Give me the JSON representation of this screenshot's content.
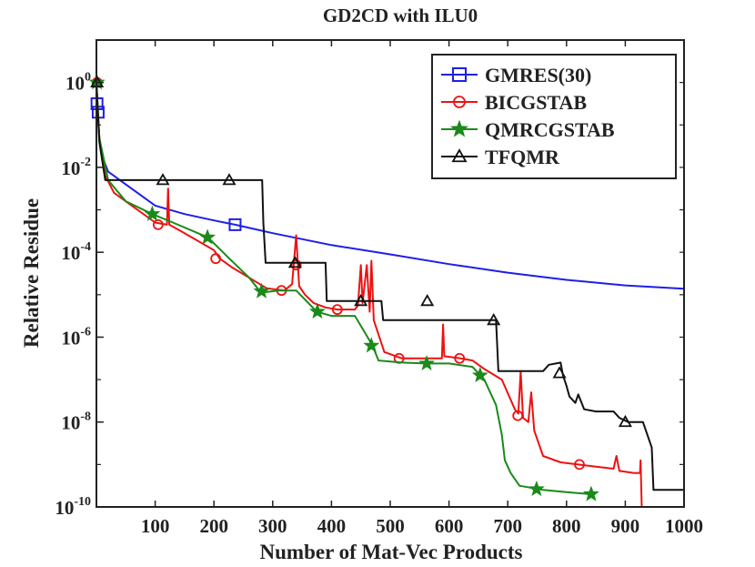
{
  "chart_data": {
    "type": "line",
    "title": "GD2CD with ILU0",
    "xlabel": "Number of Mat-Vec Products",
    "ylabel": "Relative Residue",
    "xlim": [
      0,
      1000
    ],
    "ylim_log10": [
      -10,
      1
    ],
    "yscale": "log",
    "xticks": [
      100,
      200,
      300,
      400,
      500,
      600,
      700,
      800,
      900,
      1000
    ],
    "xtick_labels": [
      "100",
      "200",
      "300",
      "400",
      "500",
      "600",
      "700",
      "800",
      "900",
      "1000"
    ],
    "yticks_log10": [
      0,
      -2,
      -4,
      -6,
      -8,
      -10
    ],
    "ytick_labels": [
      {
        "base": "10",
        "exp": "0"
      },
      {
        "base": "10",
        "exp": "-2"
      },
      {
        "base": "10",
        "exp": "-4"
      },
      {
        "base": "10",
        "exp": "-6"
      },
      {
        "base": "10",
        "exp": "-8"
      },
      {
        "base": "10",
        "exp": "-10"
      }
    ],
    "legend_position": "top-right",
    "series": [
      {
        "name": "GMRES(30)",
        "color": "#1f1fe6",
        "marker": "square",
        "points": [
          [
            0,
            0.0
          ],
          [
            1,
            -0.5
          ],
          [
            2,
            -0.7
          ],
          [
            5,
            -1.3
          ],
          [
            10,
            -1.75
          ],
          [
            20,
            -2.1
          ],
          [
            40,
            -2.3
          ],
          [
            70,
            -2.6
          ],
          [
            100,
            -2.9
          ],
          [
            150,
            -3.1
          ],
          [
            200,
            -3.25
          ],
          [
            236,
            -3.35
          ],
          [
            300,
            -3.55
          ],
          [
            400,
            -3.83
          ],
          [
            500,
            -4.05
          ],
          [
            600,
            -4.28
          ],
          [
            700,
            -4.48
          ],
          [
            800,
            -4.65
          ],
          [
            900,
            -4.78
          ],
          [
            1000,
            -4.86
          ]
        ],
        "markers": [
          [
            1,
            -0.5
          ],
          [
            3,
            -0.7
          ],
          [
            236,
            -3.35
          ]
        ]
      },
      {
        "name": "BICGSTAB",
        "color": "#ee1111",
        "marker": "circle",
        "points": [
          [
            0,
            0.0
          ],
          [
            5,
            -1.3
          ],
          [
            15,
            -2.2
          ],
          [
            30,
            -2.6
          ],
          [
            60,
            -2.9
          ],
          [
            100,
            -3.3
          ],
          [
            120,
            -3.35
          ],
          [
            122,
            -2.5
          ],
          [
            124,
            -3.35
          ],
          [
            150,
            -3.55
          ],
          [
            200,
            -3.95
          ],
          [
            210,
            -4.15
          ],
          [
            230,
            -4.35
          ],
          [
            260,
            -4.6
          ],
          [
            290,
            -4.85
          ],
          [
            320,
            -4.9
          ],
          [
            333,
            -4.75
          ],
          [
            340,
            -3.6
          ],
          [
            345,
            -4.8
          ],
          [
            355,
            -5.0
          ],
          [
            370,
            -5.2
          ],
          [
            390,
            -5.3
          ],
          [
            410,
            -5.35
          ],
          [
            440,
            -5.35
          ],
          [
            445,
            -5.25
          ],
          [
            450,
            -4.3
          ],
          [
            453,
            -5.2
          ],
          [
            460,
            -4.3
          ],
          [
            465,
            -5.4
          ],
          [
            468,
            -4.2
          ],
          [
            472,
            -5.6
          ],
          [
            490,
            -6.35
          ],
          [
            520,
            -6.5
          ],
          [
            560,
            -6.5
          ],
          [
            588,
            -6.5
          ],
          [
            590,
            -5.7
          ],
          [
            592,
            -6.45
          ],
          [
            620,
            -6.5
          ],
          [
            640,
            -6.55
          ],
          [
            660,
            -6.75
          ],
          [
            690,
            -7.0
          ],
          [
            712,
            -7.7
          ],
          [
            718,
            -7.8
          ],
          [
            722,
            -6.8
          ],
          [
            726,
            -7.9
          ],
          [
            735,
            -8.0
          ],
          [
            740,
            -7.3
          ],
          [
            745,
            -8.2
          ],
          [
            760,
            -8.8
          ],
          [
            790,
            -8.95
          ],
          [
            820,
            -9.0
          ],
          [
            850,
            -9.05
          ],
          [
            880,
            -9.1
          ],
          [
            885,
            -8.8
          ],
          [
            890,
            -9.15
          ],
          [
            915,
            -9.2
          ],
          [
            925,
            -9.2
          ],
          [
            926,
            -8.9
          ],
          [
            928,
            -10.0
          ]
        ],
        "markers": [
          [
            1,
            0.0
          ],
          [
            105,
            -3.35
          ],
          [
            203,
            -4.15
          ],
          [
            315,
            -4.9
          ],
          [
            340,
            -4.3
          ],
          [
            410,
            -5.35
          ],
          [
            515,
            -6.5
          ],
          [
            618,
            -6.5
          ],
          [
            717,
            -7.85
          ],
          [
            822,
            -9.0
          ]
        ]
      },
      {
        "name": "QMRCGSTAB",
        "color": "#1a8a1a",
        "marker": "star",
        "points": [
          [
            0,
            0.0
          ],
          [
            5,
            -1.3
          ],
          [
            20,
            -2.3
          ],
          [
            50,
            -2.8
          ],
          [
            95,
            -3.1
          ],
          [
            130,
            -3.3
          ],
          [
            190,
            -3.65
          ],
          [
            230,
            -4.2
          ],
          [
            260,
            -4.6
          ],
          [
            280,
            -4.95
          ],
          [
            310,
            -4.9
          ],
          [
            340,
            -4.9
          ],
          [
            375,
            -5.4
          ],
          [
            400,
            -5.5
          ],
          [
            440,
            -5.5
          ],
          [
            470,
            -6.2
          ],
          [
            480,
            -6.55
          ],
          [
            520,
            -6.6
          ],
          [
            560,
            -6.62
          ],
          [
            600,
            -6.62
          ],
          [
            640,
            -6.7
          ],
          [
            660,
            -7.0
          ],
          [
            680,
            -7.6
          ],
          [
            690,
            -8.3
          ],
          [
            695,
            -8.9
          ],
          [
            705,
            -9.2
          ],
          [
            720,
            -9.5
          ],
          [
            760,
            -9.6
          ],
          [
            800,
            -9.65
          ],
          [
            842,
            -9.7
          ]
        ],
        "markers": [
          [
            1,
            0.0
          ],
          [
            95,
            -3.1
          ],
          [
            189,
            -3.65
          ],
          [
            281,
            -4.92
          ],
          [
            376,
            -5.4
          ],
          [
            468,
            -6.2
          ],
          [
            562,
            -6.62
          ],
          [
            653,
            -6.9
          ],
          [
            749,
            -9.58
          ],
          [
            842,
            -9.7
          ]
        ]
      },
      {
        "name": "TFQMR",
        "color": "#111111",
        "marker": "triangle",
        "points": [
          [
            0,
            0.0
          ],
          [
            5,
            -1.4
          ],
          [
            15,
            -2.3
          ],
          [
            282,
            -2.3
          ],
          [
            284,
            -3.3
          ],
          [
            288,
            -4.25
          ],
          [
            390,
            -4.25
          ],
          [
            392,
            -5.15
          ],
          [
            485,
            -5.15
          ],
          [
            488,
            -5.6
          ],
          [
            680,
            -5.6
          ],
          [
            684,
            -6.8
          ],
          [
            760,
            -6.8
          ],
          [
            770,
            -6.65
          ],
          [
            790,
            -6.6
          ],
          [
            794,
            -6.9
          ],
          [
            800,
            -7.15
          ],
          [
            805,
            -7.4
          ],
          [
            815,
            -7.55
          ],
          [
            820,
            -7.35
          ],
          [
            830,
            -7.7
          ],
          [
            850,
            -7.75
          ],
          [
            880,
            -7.75
          ],
          [
            890,
            -7.9
          ],
          [
            905,
            -8.0
          ],
          [
            930,
            -8.0
          ],
          [
            945,
            -8.6
          ],
          [
            948,
            -9.6
          ],
          [
            1000,
            -9.6
          ]
        ],
        "markers": [
          [
            1,
            0.0
          ],
          [
            113,
            -2.3
          ],
          [
            226,
            -2.3
          ],
          [
            338,
            -4.25
          ],
          [
            450,
            -5.15
          ],
          [
            563,
            -5.15
          ],
          [
            676,
            -5.6
          ],
          [
            788,
            -6.85
          ],
          [
            900,
            -8.0
          ]
        ]
      }
    ]
  }
}
